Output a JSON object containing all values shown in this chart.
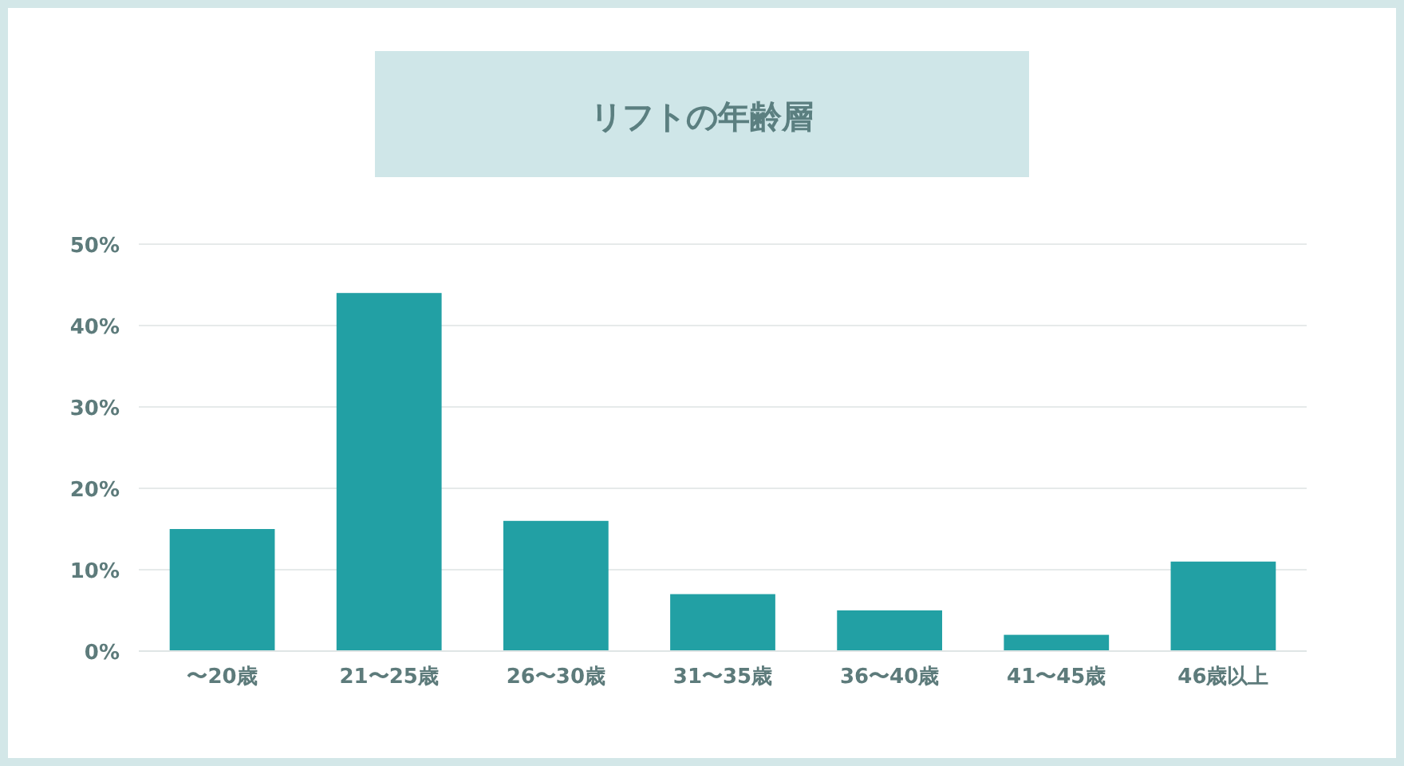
{
  "chart_data": {
    "type": "bar",
    "title": "リフトの年齢層",
    "categories": [
      "〜20歳",
      "21〜25歳",
      "26〜30歳",
      "31〜35歳",
      "36〜40歳",
      "41〜45歳",
      "46歳以上"
    ],
    "values": [
      15,
      44,
      16,
      7,
      5,
      2,
      11
    ],
    "color": "#22a0a4",
    "ylim": [
      0,
      50
    ],
    "yticks": [
      {
        "value": 0,
        "label": "0%"
      },
      {
        "value": 10,
        "label": "10%"
      },
      {
        "value": 20,
        "label": "20%"
      },
      {
        "value": 30,
        "label": "30%"
      },
      {
        "value": 40,
        "label": "40%"
      },
      {
        "value": 50,
        "label": "50%"
      }
    ],
    "grid": "y"
  }
}
